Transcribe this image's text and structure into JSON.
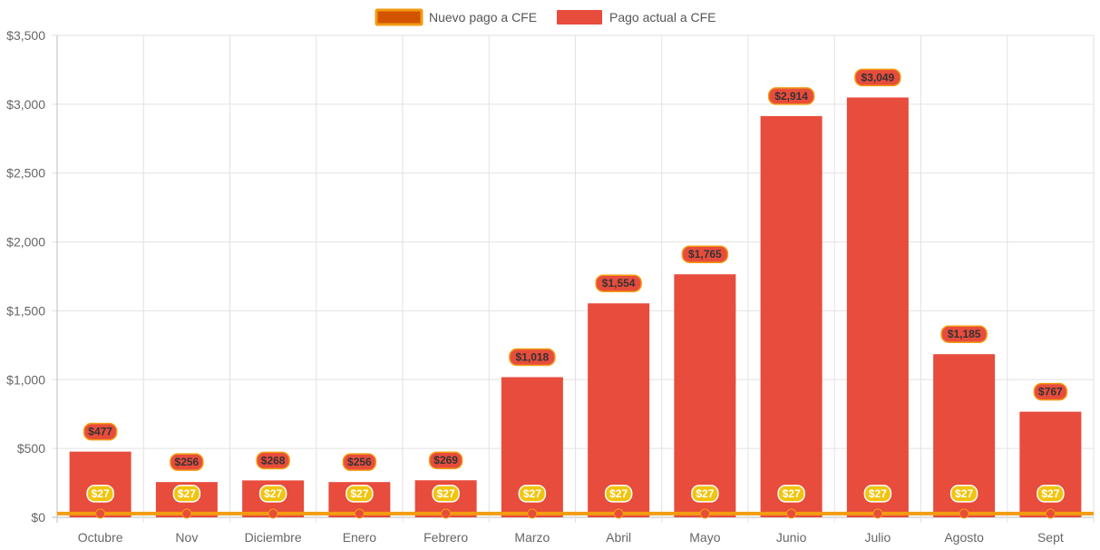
{
  "chart_data": {
    "type": "bar",
    "categories": [
      "Octubre",
      "Nov",
      "Diciembre",
      "Enero",
      "Febrero",
      "Marzo",
      "Abril",
      "Mayo",
      "Junio",
      "Julio",
      "Agosto",
      "Sept"
    ],
    "series": [
      {
        "name": "Nuevo pago a CFE",
        "type": "line",
        "values": [
          27,
          27,
          27,
          27,
          27,
          27,
          27,
          27,
          27,
          27,
          27,
          27
        ],
        "labels": [
          "$27",
          "$27",
          "$27",
          "$27",
          "$27",
          "$27",
          "$27",
          "$27",
          "$27",
          "$27",
          "$27",
          "$27"
        ],
        "color": "#f39c12",
        "fill_color": "#d35400",
        "point_color": "#e74c3c",
        "label_bg": "#f1c40f"
      },
      {
        "name": "Pago actual a CFE",
        "type": "bar",
        "values": [
          477,
          256,
          268,
          256,
          269,
          1018,
          1554,
          1765,
          2914,
          3049,
          1185,
          767
        ],
        "labels": [
          "$477",
          "$256",
          "$268",
          "$256",
          "$269",
          "$1,018",
          "$1,554",
          "$1,765",
          "$2,914",
          "$3,049",
          "$1,185",
          "$767"
        ],
        "color": "#e74c3c",
        "label_border": "#f39c12"
      }
    ],
    "yticks": [
      {
        "value": 0,
        "label": "$0"
      },
      {
        "value": 500,
        "label": "$500"
      },
      {
        "value": 1000,
        "label": "$1,000"
      },
      {
        "value": 1500,
        "label": "$1,500"
      },
      {
        "value": 2000,
        "label": "$2,000"
      },
      {
        "value": 2500,
        "label": "$2,500"
      },
      {
        "value": 3000,
        "label": "$3,000"
      },
      {
        "value": 3500,
        "label": "$3,500"
      }
    ],
    "ylim": [
      0,
      3500
    ],
    "grid": true,
    "legend_position": "top-center",
    "title": "",
    "xlabel": "",
    "ylabel": ""
  }
}
